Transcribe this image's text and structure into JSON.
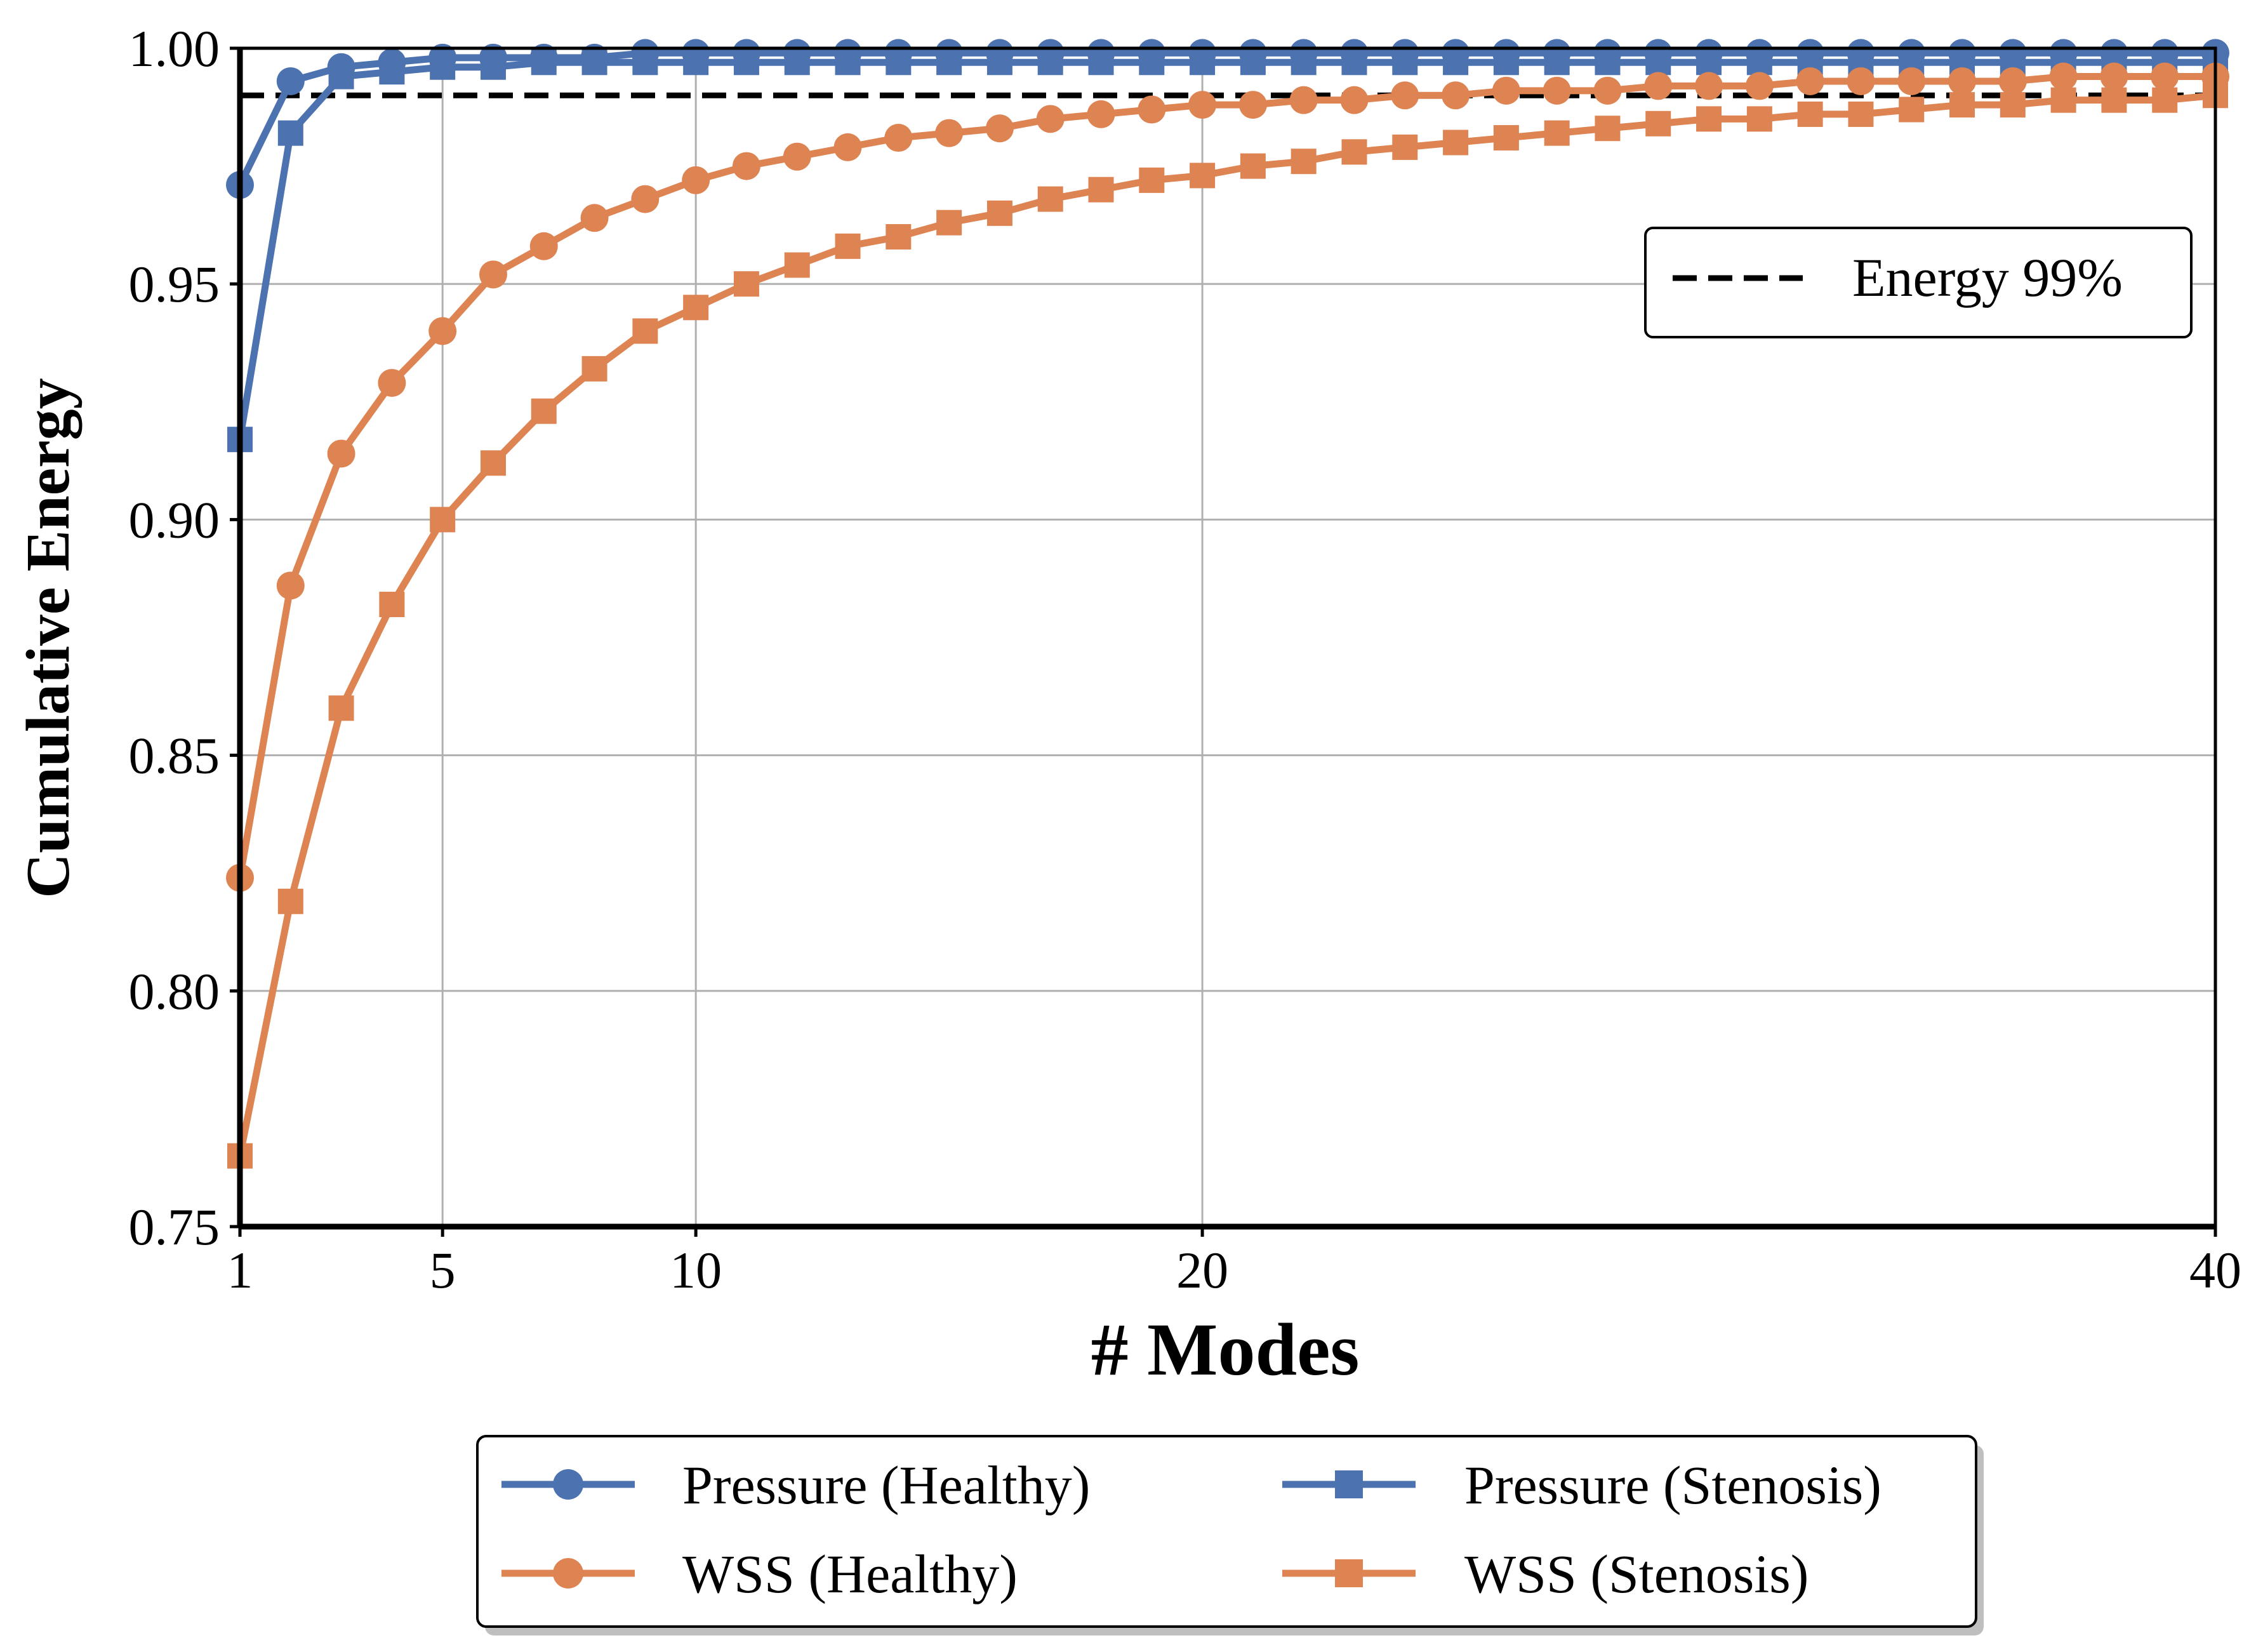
{
  "chart_data": {
    "type": "line",
    "xlabel": "# Modes",
    "ylabel": "Cumulative Energy",
    "xlim": [
      1,
      40
    ],
    "ylim": [
      0.75,
      1.0
    ],
    "xticks": [
      1,
      5,
      10,
      20,
      40
    ],
    "xtick_labels": [
      "1",
      "5",
      "10",
      "20",
      "40"
    ],
    "yticks": [
      0.75,
      0.8,
      0.85,
      0.9,
      0.95,
      1.0
    ],
    "ytick_labels": [
      "0.75",
      "0.80",
      "0.85",
      "0.90",
      "0.95",
      "1.00"
    ],
    "grid": true,
    "x": [
      1,
      2,
      3,
      4,
      5,
      6,
      7,
      8,
      9,
      10,
      11,
      12,
      13,
      14,
      15,
      16,
      17,
      18,
      19,
      20,
      21,
      22,
      23,
      24,
      25,
      26,
      27,
      28,
      29,
      30,
      31,
      32,
      33,
      34,
      35,
      36,
      37,
      38,
      39,
      40
    ],
    "series": [
      {
        "name": "Pressure (Healthy)",
        "color": "#4c72b0",
        "marker": "circle",
        "values": [
          0.971,
          0.993,
          0.996,
          0.997,
          0.998,
          0.998,
          0.998,
          0.998,
          0.999,
          0.999,
          0.999,
          0.999,
          0.999,
          0.999,
          0.999,
          0.999,
          0.999,
          0.999,
          0.999,
          0.999,
          0.999,
          0.999,
          0.999,
          0.999,
          0.999,
          0.999,
          0.999,
          0.999,
          0.999,
          0.999,
          0.999,
          0.999,
          0.999,
          0.999,
          0.999,
          0.999,
          0.999,
          0.999,
          0.999,
          0.999
        ]
      },
      {
        "name": "Pressure (Stenosis)",
        "color": "#4c72b0",
        "marker": "square",
        "values": [
          0.917,
          0.982,
          0.994,
          0.995,
          0.996,
          0.996,
          0.997,
          0.997,
          0.997,
          0.997,
          0.997,
          0.997,
          0.997,
          0.997,
          0.997,
          0.997,
          0.997,
          0.997,
          0.997,
          0.997,
          0.997,
          0.997,
          0.997,
          0.997,
          0.997,
          0.997,
          0.997,
          0.997,
          0.997,
          0.997,
          0.997,
          0.997,
          0.997,
          0.997,
          0.997,
          0.997,
          0.997,
          0.997,
          0.997,
          0.997
        ]
      },
      {
        "name": "WSS (Healthy)",
        "color": "#dd8452",
        "marker": "circle",
        "values": [
          0.824,
          0.886,
          0.914,
          0.929,
          0.94,
          0.952,
          0.958,
          0.964,
          0.968,
          0.972,
          0.975,
          0.977,
          0.979,
          0.981,
          0.982,
          0.983,
          0.985,
          0.986,
          0.987,
          0.988,
          0.988,
          0.989,
          0.989,
          0.99,
          0.99,
          0.991,
          0.991,
          0.991,
          0.992,
          0.992,
          0.992,
          0.993,
          0.993,
          0.993,
          0.993,
          0.993,
          0.994,
          0.994,
          0.994,
          0.994
        ]
      },
      {
        "name": "WSS (Stenosis)",
        "color": "#dd8452",
        "marker": "square",
        "values": [
          0.765,
          0.819,
          0.86,
          0.882,
          0.9,
          0.912,
          0.923,
          0.932,
          0.94,
          0.945,
          0.95,
          0.954,
          0.958,
          0.96,
          0.963,
          0.965,
          0.968,
          0.97,
          0.972,
          0.973,
          0.975,
          0.976,
          0.978,
          0.979,
          0.98,
          0.981,
          0.982,
          0.983,
          0.984,
          0.985,
          0.985,
          0.986,
          0.986,
          0.987,
          0.988,
          0.988,
          0.989,
          0.989,
          0.989,
          0.99
        ]
      }
    ],
    "reference_lines": [
      {
        "name": "Energy 99%",
        "y": 0.99,
        "style": "dashed",
        "color": "#000000"
      }
    ],
    "legend_inner": {
      "placement": "upper-right",
      "entries": [
        "Energy 99%"
      ]
    },
    "legend_outer": {
      "placement": "below-plot",
      "columns": 2,
      "entries": [
        "Pressure (Healthy)",
        "Pressure (Stenosis)",
        "WSS (Healthy)",
        "WSS (Stenosis)"
      ]
    }
  }
}
